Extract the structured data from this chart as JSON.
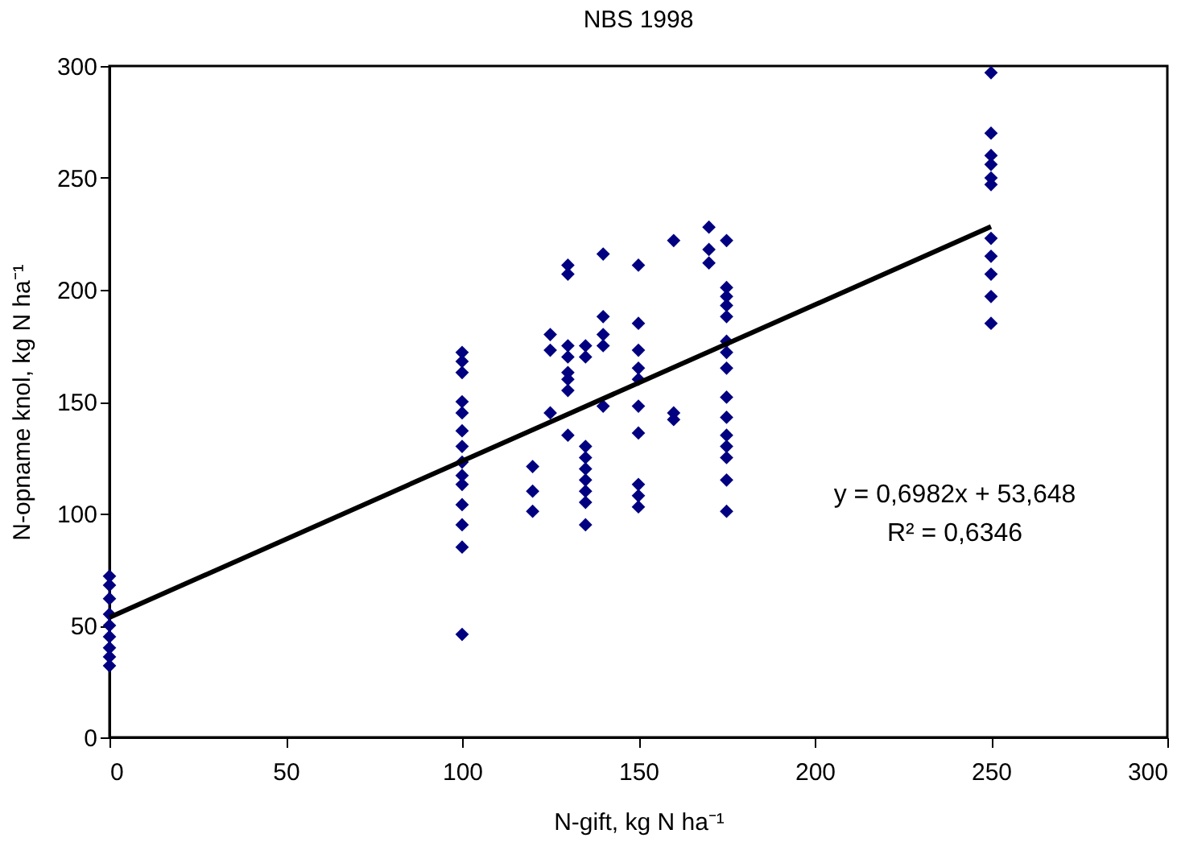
{
  "chart_data": {
    "type": "scatter",
    "title": "NBS 1998",
    "xlabel": "N-gift, kg N ha⁻¹",
    "ylabel": "N-opname knol, kg N ha⁻¹",
    "xlim": [
      0,
      300
    ],
    "ylim": [
      0,
      300
    ],
    "xticks": [
      0,
      50,
      100,
      150,
      200,
      250,
      300
    ],
    "yticks": [
      0,
      50,
      100,
      150,
      200,
      250,
      300
    ],
    "grid": false,
    "series": [
      {
        "color": "#000080",
        "marker": "diamond",
        "x": [
          0,
          0,
          0,
          0,
          0,
          0,
          0,
          0,
          0,
          100,
          100,
          100,
          100,
          100,
          100,
          100,
          100,
          100,
          100,
          100,
          100,
          100,
          100,
          120,
          120,
          120,
          125,
          125,
          125,
          130,
          130,
          130,
          130,
          130,
          130,
          130,
          130,
          135,
          135,
          135,
          135,
          135,
          135,
          135,
          135,
          135,
          140,
          140,
          140,
          140,
          140,
          150,
          150,
          150,
          150,
          150,
          150,
          150,
          150,
          150,
          150,
          160,
          160,
          160,
          170,
          170,
          170,
          175,
          175,
          175,
          175,
          175,
          175,
          175,
          175,
          175,
          175,
          175,
          175,
          175,
          175,
          175,
          250,
          250,
          250,
          250,
          250,
          250,
          250,
          250,
          250,
          250,
          250
        ],
        "values": [
          72,
          68,
          62,
          55,
          50,
          45,
          40,
          36,
          32,
          172,
          168,
          163,
          150,
          145,
          137,
          130,
          123,
          117,
          113,
          104,
          95,
          85,
          46,
          121,
          110,
          101,
          180,
          173,
          145,
          211,
          207,
          175,
          170,
          163,
          160,
          155,
          135,
          175,
          170,
          130,
          125,
          120,
          115,
          110,
          105,
          95,
          216,
          188,
          180,
          175,
          148,
          211,
          185,
          173,
          165,
          160,
          148,
          136,
          113,
          108,
          103,
          222,
          145,
          142,
          228,
          218,
          212,
          222,
          201,
          197,
          193,
          188,
          177,
          172,
          165,
          152,
          143,
          135,
          130,
          125,
          115,
          101,
          297,
          270,
          260,
          256,
          250,
          247,
          223,
          215,
          207,
          197,
          185
        ]
      },
      {
        "type": "line",
        "marker": "none",
        "color": "#000000",
        "x": [
          0,
          250
        ],
        "values": [
          53.6,
          228.2
        ]
      }
    ],
    "annotations": [
      "y = 0,6982x + 53,648",
      "R² = 0,6346"
    ]
  }
}
